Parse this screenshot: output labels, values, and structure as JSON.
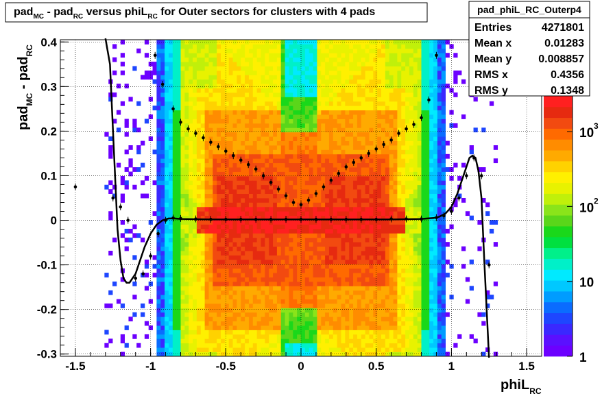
{
  "chart_data": {
    "type": "heatmap",
    "title": "pad_MC - pad_RC versus phiL_RC for Outer sectors for clusters with 4 pads",
    "title_parts": {
      "p1": "pad",
      "p1sub": "MC",
      "p2": " - pad",
      "p2sub": "RC",
      "p3": " versus phiL",
      "p3sub": "RC",
      "p4": " for Outer sectors for clusters with 4 pads"
    },
    "xlabel": {
      "main": "phiL",
      "sub": "RC"
    },
    "ylabel": {
      "a": "pad",
      "asub": "MC",
      "b": " - pad",
      "bsub": "RC"
    },
    "xlim": [
      -1.6,
      1.6
    ],
    "ylim": [
      -0.305,
      0.405
    ],
    "x_ticks": [
      -1.5,
      -1,
      -0.5,
      0,
      0.5,
      1,
      1.5
    ],
    "x_tick_labels": [
      "-1.5",
      "-1",
      "-0.5",
      "0",
      "0.5",
      "1",
      "1.5"
    ],
    "y_ticks": [
      -0.3,
      -0.2,
      -0.1,
      0,
      0.1,
      0.2,
      0.3,
      0.4
    ],
    "y_tick_labels": [
      "-0.3",
      "-0.2",
      "-0.1",
      "0",
      "0.1",
      "0.2",
      "0.3",
      "0.4"
    ],
    "grid": true,
    "z_scale": "log",
    "z_range": [
      1,
      3000
    ],
    "colorbar_labels": [
      "1",
      "10",
      "10",
      "10"
    ],
    "colorbar_exponents": [
      "",
      "",
      "2",
      "3"
    ],
    "colorbar_label_values": [
      1,
      10,
      100,
      1000
    ],
    "palette": [
      "#6c00ff",
      "#5a10ff",
      "#3a28ff",
      "#1e46ff",
      "#0a6cff",
      "#009cff",
      "#00c8ff",
      "#00eaff",
      "#00f0c8",
      "#00f08a",
      "#00e040",
      "#1ad81a",
      "#5ad61a",
      "#8ae41a",
      "#c0f00a",
      "#e8f200",
      "#fff000",
      "#ffd200",
      "#ffaa00",
      "#ff8c00",
      "#ff6a00",
      "#f24a10",
      "#e62a10",
      "#ff2020"
    ],
    "density_model": "z = 0.25*count(log scale); bands: central (|phiL|<0.6) dense near 0 with X-shaped band, edges (0.85<|phiL|<0.95) blue",
    "stats_box": {
      "name": "pad_phiL_RC_Outerp4",
      "rows": [
        {
          "label": "Entries",
          "value": "4271801"
        },
        {
          "label": "Mean x",
          "value": "0.01283"
        },
        {
          "label": "Mean y",
          "value": "0.008857"
        },
        {
          "label": "RMS x",
          "value": "0.4356"
        },
        {
          "label": "RMS y",
          "value": "0.1348"
        }
      ]
    },
    "series": [
      {
        "name": "",
        "type": "profile_mean",
        "x": [
          -1.5,
          -1.25,
          -1.2,
          -1.15,
          -1.1,
          -1.05,
          -1.0,
          -0.95,
          -0.9,
          -0.85,
          -0.8,
          -0.7,
          -0.6,
          -0.5,
          -0.4,
          -0.3,
          -0.2,
          -0.1,
          0.0,
          0.1,
          0.2,
          0.3,
          0.4,
          0.5,
          0.6,
          0.7,
          0.8,
          0.9,
          0.95,
          1.0,
          1.05,
          1.1,
          1.15,
          1.2,
          1.25
        ],
        "y": [
          0.075,
          0.05,
          0.03,
          0.0,
          -0.13,
          -0.12,
          -0.08,
          -0.03,
          0.0,
          0.005,
          0.004,
          0.003,
          0.002,
          0.002,
          0.002,
          0.002,
          0.002,
          0.002,
          0.002,
          0.002,
          0.002,
          0.002,
          0.002,
          0.002,
          0.003,
          0.003,
          0.003,
          0.006,
          0.01,
          0.02,
          0.05,
          0.1,
          0.14,
          0.1,
          -0.1
        ]
      },
      {
        "name": "",
        "type": "profile_rms",
        "x": [
          -0.97,
          -0.92,
          -0.85,
          -0.8,
          -0.75,
          -0.7,
          -0.65,
          -0.6,
          -0.55,
          -0.5,
          -0.45,
          -0.4,
          -0.35,
          -0.3,
          -0.25,
          -0.2,
          -0.15,
          -0.1,
          -0.05,
          0.0,
          0.05,
          0.1,
          0.15,
          0.2,
          0.25,
          0.3,
          0.35,
          0.4,
          0.45,
          0.5,
          0.55,
          0.6,
          0.65,
          0.7,
          0.75,
          0.8,
          0.85,
          0.9
        ],
        "y": [
          0.37,
          0.305,
          0.25,
          0.22,
          0.205,
          0.195,
          0.185,
          0.175,
          0.165,
          0.155,
          0.145,
          0.135,
          0.125,
          0.115,
          0.1,
          0.085,
          0.07,
          0.055,
          0.04,
          0.035,
          0.045,
          0.06,
          0.075,
          0.09,
          0.105,
          0.12,
          0.13,
          0.14,
          0.15,
          0.16,
          0.17,
          0.18,
          0.195,
          0.205,
          0.215,
          0.23,
          0.27,
          0.37
        ]
      },
      {
        "name": "",
        "type": "fit_curve",
        "x": [
          -1.3,
          -1.27,
          -1.25,
          -1.22,
          -1.2,
          -1.18,
          -1.16,
          -1.14,
          -1.12,
          -1.1,
          -1.07,
          -1.04,
          -1.0,
          -0.96,
          -0.92,
          -0.88,
          -0.84,
          -0.8,
          -0.6,
          -0.4,
          -0.2,
          0.0,
          0.2,
          0.4,
          0.6,
          0.8,
          0.84,
          0.88,
          0.92,
          0.96,
          1.0,
          1.04,
          1.07,
          1.1,
          1.12,
          1.14,
          1.16,
          1.18,
          1.2,
          1.22,
          1.25
        ],
        "y": [
          0.42,
          0.35,
          0.2,
          -0.02,
          -0.09,
          -0.13,
          -0.14,
          -0.14,
          -0.13,
          -0.12,
          -0.09,
          -0.06,
          -0.03,
          -0.01,
          0.0,
          0.004,
          0.004,
          0.003,
          0.002,
          0.002,
          0.002,
          0.002,
          0.002,
          0.002,
          0.002,
          0.003,
          0.004,
          0.005,
          0.008,
          0.015,
          0.03,
          0.06,
          0.09,
          0.12,
          0.14,
          0.145,
          0.14,
          0.11,
          0.05,
          -0.1,
          -0.32
        ]
      }
    ]
  }
}
